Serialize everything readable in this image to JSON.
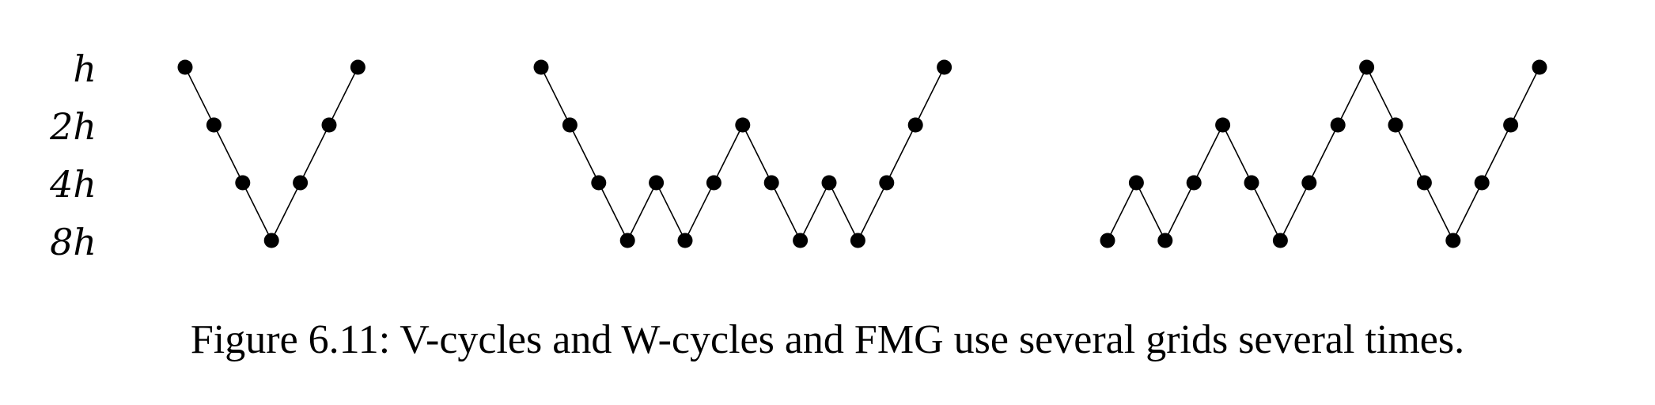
{
  "levels": [
    "h",
    "2h",
    "4h",
    "8h"
  ],
  "cycles": [
    {
      "name": "v-cycle",
      "sequence": [
        0,
        1,
        2,
        3,
        2,
        1,
        0
      ]
    },
    {
      "name": "w-cycle",
      "sequence": [
        0,
        1,
        2,
        3,
        2,
        3,
        2,
        1,
        2,
        3,
        2,
        3,
        2,
        1,
        0
      ]
    },
    {
      "name": "fmg",
      "sequence": [
        3,
        2,
        3,
        2,
        1,
        2,
        3,
        2,
        1,
        0,
        1,
        2,
        3,
        2,
        1,
        0
      ]
    }
  ],
  "colors": {
    "ink": "#000000",
    "background": "#ffffff"
  },
  "caption": "Figure 6.11: V-cycles and W-cycles and FMG use several grids several times."
}
